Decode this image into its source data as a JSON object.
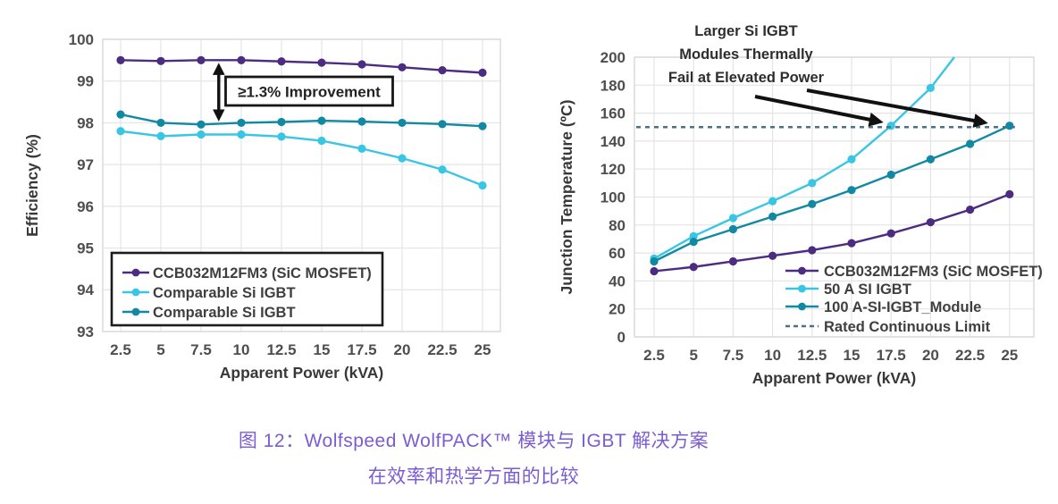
{
  "caption": {
    "line1": "图 12：Wolfspeed WolfPACK™ 模块与 IGBT 解决方案",
    "line2": "在效率和热学方面的比较",
    "color": "#7B5CD3"
  },
  "colors": {
    "purple": "#4B2C80",
    "cyan": "#38C6E4",
    "teal": "#1189A2",
    "dashed_limit": "#4C7086",
    "grid": "#e4e4e4",
    "frame": "#d6d6d6",
    "tick_text": "#4e4e4e",
    "axis_title_text": "#383838",
    "legend_text": "#3f3f3f",
    "annotation_text": "#222222",
    "annotation_arrow": "#111111"
  },
  "chart_data": [
    {
      "id": "efficiency",
      "type": "line",
      "title": "",
      "xlabel": "Apparent Power (kVA)",
      "ylabel": "Efficiency (%)",
      "x": [
        2.5,
        5,
        7.5,
        10,
        12.5,
        15,
        17.5,
        20,
        22.5,
        25
      ],
      "xtick_labels": [
        "2.5",
        "5",
        "7.5",
        "10",
        "12.5",
        "15",
        "17.5",
        "20",
        "22.5",
        "25"
      ],
      "ylim": [
        93,
        100
      ],
      "yticks": [
        93,
        94,
        95,
        96,
        97,
        98,
        99,
        100
      ],
      "grid": true,
      "legend_position": "lower-left-boxed",
      "series": [
        {
          "name": "CCB032M12FM3 (SiC MOSFET)",
          "color_key": "purple",
          "values": [
            99.5,
            99.48,
            99.5,
            99.5,
            99.47,
            99.44,
            99.4,
            99.33,
            99.26,
            99.2
          ]
        },
        {
          "name": "Comparable Si IGBT",
          "color_key": "cyan",
          "values": [
            97.8,
            97.68,
            97.72,
            97.72,
            97.67,
            97.57,
            97.38,
            97.15,
            96.88,
            96.5
          ]
        },
        {
          "name": "Comparable Si IGBT",
          "color_key": "teal",
          "values": [
            98.2,
            98.0,
            97.96,
            98.0,
            98.02,
            98.05,
            98.03,
            98.0,
            97.97,
            97.92
          ]
        }
      ],
      "annotation": {
        "label": "≥1.3% Improvement",
        "double_arrow": {
          "x": 8.6,
          "y_from": 98.12,
          "y_to": 99.35
        }
      }
    },
    {
      "id": "junction-temperature",
      "type": "line",
      "title": "",
      "xlabel": "Apparent Power (kVA)",
      "ylabel": "Junction Temperature (ºC)",
      "x": [
        2.5,
        5,
        7.5,
        10,
        12.5,
        15,
        17.5,
        20,
        22.5,
        25
      ],
      "xtick_labels": [
        "2.5",
        "5",
        "7.5",
        "10",
        "12.5",
        "15",
        "17.5",
        "20",
        "22.5",
        "25"
      ],
      "ylim": [
        0,
        200
      ],
      "yticks": [
        0,
        20,
        40,
        60,
        80,
        100,
        120,
        140,
        160,
        180,
        200
      ],
      "grid": true,
      "legend_position": "lower-right-plain",
      "series": [
        {
          "name": "CCB032M12FM3 (SiC MOSFET)",
          "color_key": "purple",
          "values": [
            47,
            50,
            54,
            58,
            62,
            67,
            74,
            82,
            91,
            102
          ]
        },
        {
          "name": "50 A SI IGBT",
          "color_key": "cyan",
          "x_subset": [
            2.5,
            5,
            7.5,
            10,
            12.5,
            15,
            17.5,
            20
          ],
          "values": [
            56,
            72,
            85,
            97,
            110,
            127,
            151,
            178
          ],
          "exit_point": {
            "x": 21.5,
            "y": 200
          }
        },
        {
          "name": "100 A-SI-IGBT_Module",
          "color_key": "teal",
          "values": [
            54,
            68,
            77,
            86,
            95,
            105,
            116,
            127,
            138,
            151
          ]
        },
        {
          "name": "Rated Continuous Limit",
          "color_key": "dashed_limit",
          "dashed": true,
          "const_value": 150
        }
      ],
      "annotation": {
        "lines": [
          "Larger Si IGBT",
          "Modules Thermally",
          "Fail at Elevated Power"
        ],
        "arrows": [
          {
            "from": [
              845,
              108
            ],
            "to": [
              984,
              136
            ]
          },
          {
            "from": [
              903,
              101
            ],
            "to": [
              1101,
              137
            ]
          }
        ]
      }
    }
  ]
}
